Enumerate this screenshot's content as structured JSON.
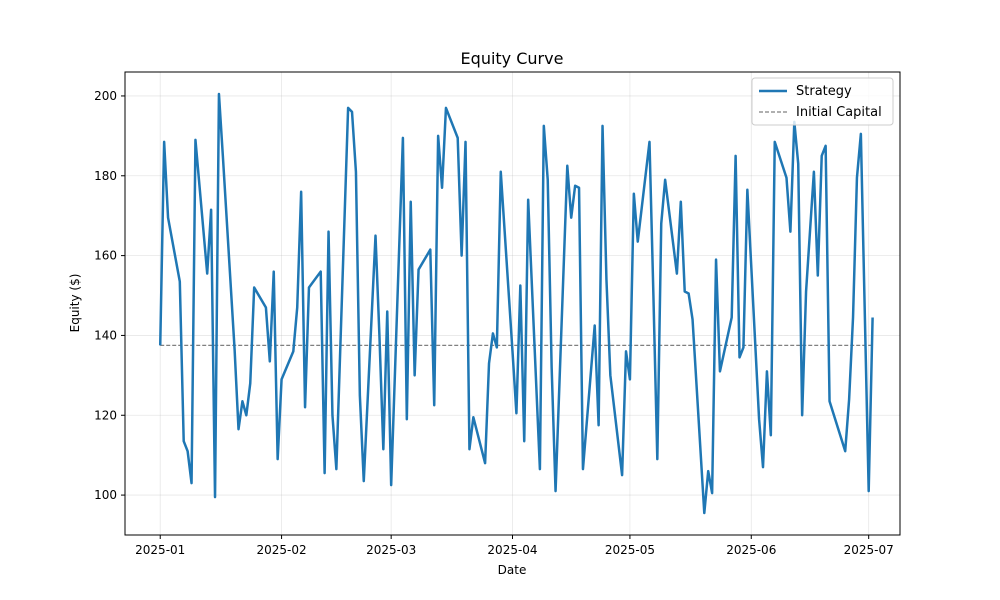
{
  "chart_data": {
    "type": "line",
    "title": "Equity Curve",
    "xlabel": "Date",
    "ylabel": "Equity ($)",
    "x_range": [
      "2024-12-23",
      "2025-07-09"
    ],
    "ylim": [
      90,
      206
    ],
    "grid": true,
    "legend_position": "top-right",
    "x_ticks": [
      "2025-01-01",
      "2025-02-01",
      "2025-03-01",
      "2025-04-01",
      "2025-05-01",
      "2025-06-01",
      "2025-07-01"
    ],
    "x_tick_labels": [
      "2025-01",
      "2025-02",
      "2025-03",
      "2025-04",
      "2025-05",
      "2025-06",
      "2025-07"
    ],
    "y_ticks": [
      100,
      120,
      140,
      160,
      180,
      200
    ],
    "y_tick_labels": [
      "100",
      "120",
      "140",
      "160",
      "180",
      "200"
    ],
    "series": [
      {
        "name": "Strategy",
        "color": "#1f77b4",
        "style": "solid",
        "points": [
          [
            "2025-01-01",
            137.5
          ],
          [
            "2025-01-02",
            188.5
          ],
          [
            "2025-01-03",
            169.5
          ],
          [
            "2025-01-06",
            153.5
          ],
          [
            "2025-01-07",
            113.5
          ],
          [
            "2025-01-08",
            111.0
          ],
          [
            "2025-01-09",
            103.0
          ],
          [
            "2025-01-10",
            189.0
          ],
          [
            "2025-01-13",
            155.5
          ],
          [
            "2025-01-14",
            171.5
          ],
          [
            "2025-01-15",
            99.5
          ],
          [
            "2025-01-16",
            200.5
          ],
          [
            "2025-01-17",
            185.0
          ],
          [
            "2025-01-20",
            136.5
          ],
          [
            "2025-01-21",
            116.5
          ],
          [
            "2025-01-22",
            123.5
          ],
          [
            "2025-01-23",
            120.0
          ],
          [
            "2025-01-24",
            128.0
          ],
          [
            "2025-01-25",
            152.0
          ],
          [
            "2025-01-28",
            147.0
          ],
          [
            "2025-01-29",
            133.5
          ],
          [
            "2025-01-30",
            156.0
          ],
          [
            "2025-01-31",
            109.0
          ],
          [
            "2025-02-01",
            129.0
          ],
          [
            "2025-02-04",
            136.0
          ],
          [
            "2025-02-05",
            147.0
          ],
          [
            "2025-02-06",
            176.0
          ],
          [
            "2025-02-07",
            122.0
          ],
          [
            "2025-02-08",
            152.0
          ],
          [
            "2025-02-11",
            156.0
          ],
          [
            "2025-02-12",
            105.5
          ],
          [
            "2025-02-13",
            166.0
          ],
          [
            "2025-02-14",
            120.0
          ],
          [
            "2025-02-15",
            106.5
          ],
          [
            "2025-02-18",
            197.0
          ],
          [
            "2025-02-19",
            196.0
          ],
          [
            "2025-02-20",
            181.0
          ],
          [
            "2025-02-21",
            125.0
          ],
          [
            "2025-02-22",
            103.5
          ],
          [
            "2025-02-25",
            165.0
          ],
          [
            "2025-02-26",
            140.0
          ],
          [
            "2025-02-27",
            111.5
          ],
          [
            "2025-02-28",
            146.0
          ],
          [
            "2025-03-01",
            102.5
          ],
          [
            "2025-03-04",
            189.5
          ],
          [
            "2025-03-05",
            119.0
          ],
          [
            "2025-03-06",
            173.5
          ],
          [
            "2025-03-07",
            130.0
          ],
          [
            "2025-03-08",
            156.5
          ],
          [
            "2025-03-11",
            161.5
          ],
          [
            "2025-03-12",
            122.5
          ],
          [
            "2025-03-13",
            190.0
          ],
          [
            "2025-03-14",
            177.0
          ],
          [
            "2025-03-15",
            197.0
          ],
          [
            "2025-03-18",
            189.5
          ],
          [
            "2025-03-19",
            160.0
          ],
          [
            "2025-03-20",
            188.5
          ],
          [
            "2025-03-21",
            111.5
          ],
          [
            "2025-03-22",
            119.5
          ],
          [
            "2025-03-25",
            108.0
          ],
          [
            "2025-03-26",
            133.0
          ],
          [
            "2025-03-27",
            140.5
          ],
          [
            "2025-03-28",
            137.0
          ],
          [
            "2025-03-29",
            181.0
          ],
          [
            "2025-04-01",
            136.0
          ],
          [
            "2025-04-02",
            120.5
          ],
          [
            "2025-04-03",
            152.5
          ],
          [
            "2025-04-04",
            113.5
          ],
          [
            "2025-04-05",
            174.0
          ],
          [
            "2025-04-08",
            106.5
          ],
          [
            "2025-04-09",
            192.5
          ],
          [
            "2025-04-10",
            179.0
          ],
          [
            "2025-04-11",
            132.0
          ],
          [
            "2025-04-12",
            101.0
          ],
          [
            "2025-04-15",
            182.5
          ],
          [
            "2025-04-16",
            169.5
          ],
          [
            "2025-04-17",
            177.5
          ],
          [
            "2025-04-18",
            177.0
          ],
          [
            "2025-04-19",
            106.5
          ],
          [
            "2025-04-22",
            142.5
          ],
          [
            "2025-04-23",
            117.5
          ],
          [
            "2025-04-24",
            192.5
          ],
          [
            "2025-04-25",
            154.0
          ],
          [
            "2025-04-26",
            130.0
          ],
          [
            "2025-04-29",
            105.0
          ],
          [
            "2025-04-30",
            136.0
          ],
          [
            "2025-05-01",
            129.0
          ],
          [
            "2025-05-02",
            175.5
          ],
          [
            "2025-05-03",
            163.5
          ],
          [
            "2025-05-06",
            188.5
          ],
          [
            "2025-05-07",
            150.0
          ],
          [
            "2025-05-08",
            109.0
          ],
          [
            "2025-05-09",
            168.0
          ],
          [
            "2025-05-10",
            179.0
          ],
          [
            "2025-05-13",
            155.5
          ],
          [
            "2025-05-14",
            173.5
          ],
          [
            "2025-05-15",
            151.0
          ],
          [
            "2025-05-16",
            150.5
          ],
          [
            "2025-05-17",
            144.0
          ],
          [
            "2025-05-20",
            95.5
          ],
          [
            "2025-05-21",
            106.0
          ],
          [
            "2025-05-22",
            100.5
          ],
          [
            "2025-05-23",
            159.0
          ],
          [
            "2025-05-24",
            131.0
          ],
          [
            "2025-05-27",
            144.5
          ],
          [
            "2025-05-28",
            185.0
          ],
          [
            "2025-05-29",
            134.5
          ],
          [
            "2025-05-30",
            137.0
          ],
          [
            "2025-05-31",
            176.5
          ],
          [
            "2025-06-03",
            119.0
          ],
          [
            "2025-06-04",
            107.0
          ],
          [
            "2025-06-05",
            131.0
          ],
          [
            "2025-06-06",
            115.0
          ],
          [
            "2025-06-07",
            188.5
          ],
          [
            "2025-06-10",
            179.5
          ],
          [
            "2025-06-11",
            166.0
          ],
          [
            "2025-06-12",
            193.5
          ],
          [
            "2025-06-13",
            183.0
          ],
          [
            "2025-06-14",
            120.0
          ],
          [
            "2025-06-15",
            151.0
          ],
          [
            "2025-06-17",
            181.0
          ],
          [
            "2025-06-18",
            155.0
          ],
          [
            "2025-06-19",
            185.0
          ],
          [
            "2025-06-20",
            187.5
          ],
          [
            "2025-06-21",
            123.5
          ],
          [
            "2025-06-25",
            111.0
          ],
          [
            "2025-06-26",
            124.0
          ],
          [
            "2025-06-27",
            144.5
          ],
          [
            "2025-06-28",
            179.5
          ],
          [
            "2025-06-29",
            190.5
          ],
          [
            "2025-07-01",
            101.0
          ],
          [
            "2025-07-02",
            144.5
          ]
        ]
      },
      {
        "name": "Initial Capital",
        "color": "#808080",
        "style": "dashed",
        "points": [
          [
            "2025-01-01",
            137.5
          ],
          [
            "2025-07-02",
            137.5
          ]
        ]
      }
    ]
  }
}
